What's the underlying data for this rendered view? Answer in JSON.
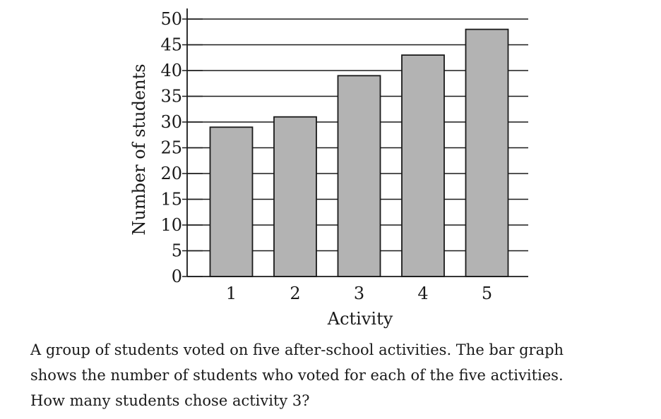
{
  "chart_data": {
    "type": "bar",
    "categories": [
      "1",
      "2",
      "3",
      "4",
      "5"
    ],
    "values": [
      29,
      31,
      39,
      43,
      48
    ],
    "title": "",
    "xlabel": "Activity",
    "ylabel": "Number of students",
    "ylim": [
      0,
      50
    ],
    "yticks": [
      0,
      5,
      10,
      15,
      20,
      25,
      30,
      35,
      40,
      45,
      50
    ],
    "grid": true,
    "bar_color": "#b3b3b3",
    "bar_edge_color": "#1a1a1a"
  },
  "question": {
    "lines": [
      "A group of students voted on five after-school activities. The bar graph",
      "shows the number of students who voted for each of the five activities.",
      "How many students chose activity 3?"
    ]
  }
}
